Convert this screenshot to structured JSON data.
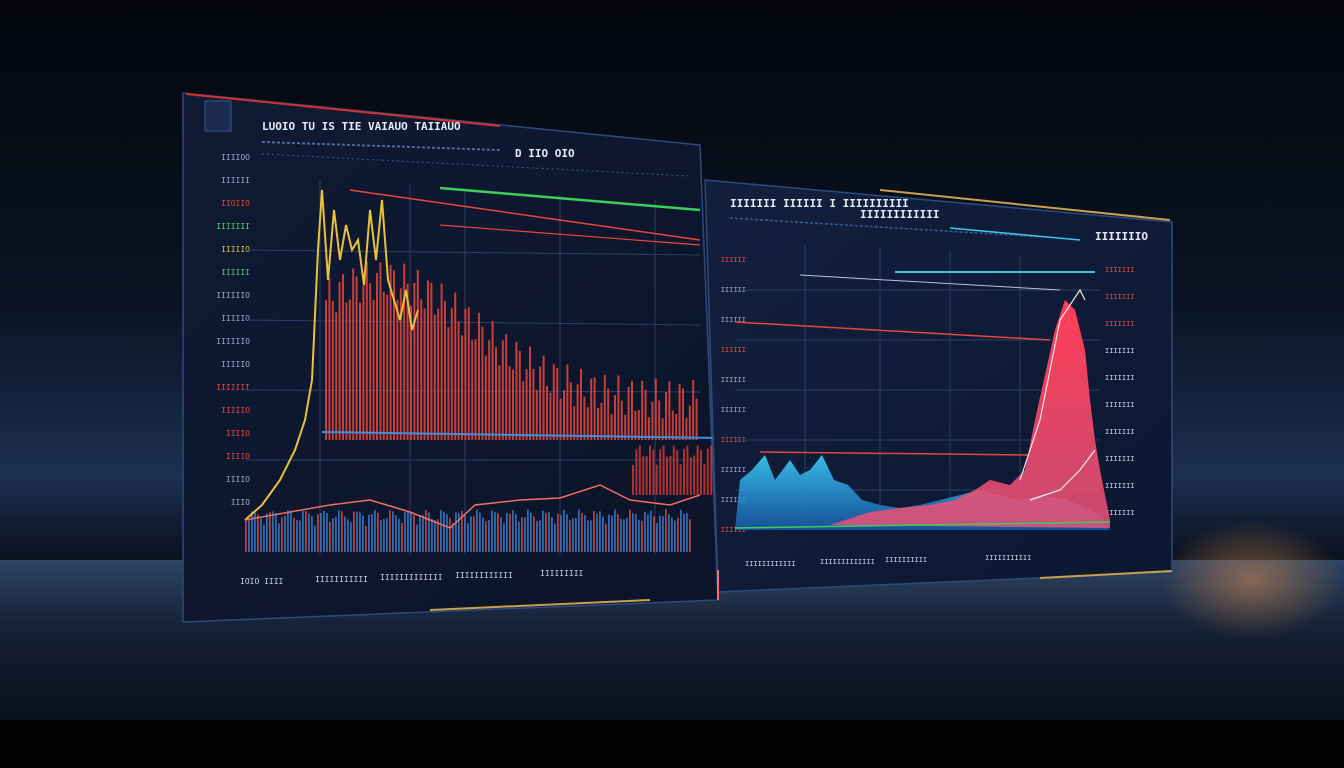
{
  "colors": {
    "panel_bg": "#0f1a33",
    "grid": "#2b3f66",
    "red": "#e8463c",
    "yellow": "#e8c23a",
    "blue": "#3d8ee0",
    "cyan": "#3fc4e8",
    "green": "#3bcf5a",
    "pink": "#ff5a6e",
    "text_dim": "#7e93b8",
    "text_bright": "#e6ecf7"
  },
  "left_panel": {
    "title": "LUOIO TU IS TIE VAIAUO TAIIAUO",
    "subtitle": "D IIO OIO",
    "axis_labels": [
      "IIIIOO",
      "IIIIII",
      "IIOIIO",
      "IIIIIII",
      "IIIIIO",
      "IIIIII",
      "IIIIIIO",
      "IIIIIO",
      "IIIIIIO",
      "IIIIIO",
      "IIIIIII",
      "IIIIIO",
      "IIIIO",
      "IIIIO",
      "IIIIO",
      "IIIO"
    ],
    "bottom_labels": [
      "IOIO IIII",
      "IIIIIIIIIII",
      "IIIIIIIIIIIII",
      "IIIIIIIIIIII",
      "IIIIIIIII"
    ],
    "legend_icon": "chart-icon"
  },
  "right_panel": {
    "title": "IIIIIII IIIIII I IIIIIIIIII",
    "subtitle": "IIIIIIIIIIII",
    "corner_label": "IIIIIIIO",
    "axis_labels": [
      "IIIIII",
      "IIIIII",
      "IIIIII",
      "IIIIII",
      "IIIIII",
      "IIIIII",
      "IIIIII",
      "IIIIII",
      "IIIIII",
      "IIIIII"
    ],
    "right_labels": [
      "IIIIIII",
      "IIIIIII",
      "IIIIIII",
      "IIIIIII",
      "IIIIIII",
      "IIIIIII",
      "IIIIIII",
      "IIIIIII",
      "IIIIIII",
      "IIIIIII"
    ],
    "bottom_labels": [
      "IIIIIIIIIIII",
      "IIIIIIIIIIIII",
      "IIIIIIIIII",
      "IIIIIIIIIII"
    ]
  }
}
